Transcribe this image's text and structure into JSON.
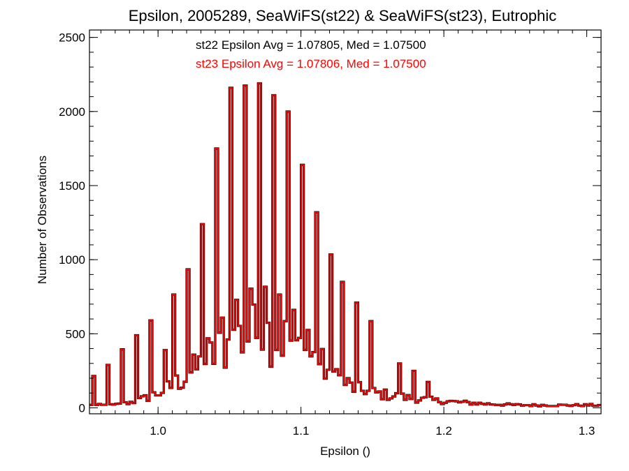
{
  "chart_data": {
    "type": "histogram",
    "title": "Epsilon, 2005289, SeaWiFS(st22) & SeaWiFS(st23), Eutrophic",
    "xlabel": "Epsilon ()",
    "ylabel": "Number of Observations",
    "xlim": [
      0.952,
      1.31
    ],
    "ylim": [
      -40,
      2550
    ],
    "x_ticks": [
      1.0,
      1.1,
      1.2,
      1.3
    ],
    "x_tick_labels": [
      "1.0",
      "1.1",
      "1.2",
      "1.3"
    ],
    "y_ticks": [
      0,
      500,
      1000,
      1500,
      2000,
      2500
    ],
    "y_tick_labels": [
      "0",
      "500",
      "1000",
      "1500",
      "2000",
      "2500"
    ],
    "bin_width": 0.002,
    "grid": false,
    "series": [
      {
        "name": "st22",
        "color": "#000000",
        "values": []
      },
      {
        "name": "st23",
        "color": "#ff0000",
        "values": []
      }
    ],
    "annotations": [
      {
        "text": "st22 Epsilon Avg = 1.07805, Med = 1.07500",
        "color": "#000000"
      },
      {
        "text": "st23 Epsilon Avg = 1.07806, Med = 1.07500",
        "color": "#ff0000"
      }
    ],
    "key_spikes": [
      {
        "x": 0.955,
        "y": 215
      },
      {
        "x": 0.965,
        "y": 290
      },
      {
        "x": 0.975,
        "y": 395
      },
      {
        "x": 0.985,
        "y": 490
      },
      {
        "x": 0.995,
        "y": 590
      },
      {
        "x": 1.005,
        "y": 390
      },
      {
        "x": 1.01,
        "y": 765
      },
      {
        "x": 1.02,
        "y": 935
      },
      {
        "x": 1.03,
        "y": 1240
      },
      {
        "x": 1.04,
        "y": 1750
      },
      {
        "x": 1.05,
        "y": 2160
      },
      {
        "x": 1.06,
        "y": 2175
      },
      {
        "x": 1.07,
        "y": 2190
      },
      {
        "x": 1.08,
        "y": 2110
      },
      {
        "x": 1.09,
        "y": 2000
      },
      {
        "x": 1.1,
        "y": 1640
      },
      {
        "x": 1.11,
        "y": 1320
      },
      {
        "x": 1.12,
        "y": 1035
      },
      {
        "x": 1.13,
        "y": 850
      },
      {
        "x": 1.14,
        "y": 710
      },
      {
        "x": 1.15,
        "y": 585
      },
      {
        "x": 1.17,
        "y": 300
      },
      {
        "x": 1.18,
        "y": 250
      },
      {
        "x": 1.19,
        "y": 175
      }
    ]
  }
}
